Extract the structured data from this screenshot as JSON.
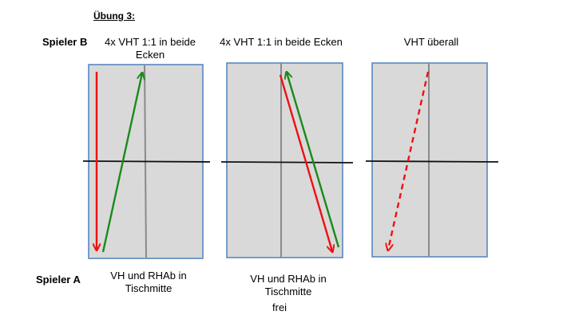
{
  "title": "Übung 3:",
  "labels": {
    "player_b": "Spieler B",
    "player_a": "Spieler A"
  },
  "top_captions": [
    {
      "line1": "4x VHT 1:1 in beide",
      "line2": "Ecken"
    },
    {
      "line1": "4x VHT 1:1 in beide Ecken",
      "line2": ""
    },
    {
      "line1": "VHT überall",
      "line2": ""
    }
  ],
  "bottom_captions": [
    {
      "line1": "VH und RHAb in",
      "line2": "Tischmitte"
    },
    {
      "line1": "VH und RHAb in",
      "line2": "Tischmitte"
    }
  ],
  "footer": "frei",
  "colors": {
    "table_fill": "#d9d9d9",
    "table_border": "#4f81bd",
    "red_arrow": "#ee1111",
    "green_arrow": "#1a8a1a",
    "net": "#111111",
    "center_line": "#8a8a8a"
  }
}
